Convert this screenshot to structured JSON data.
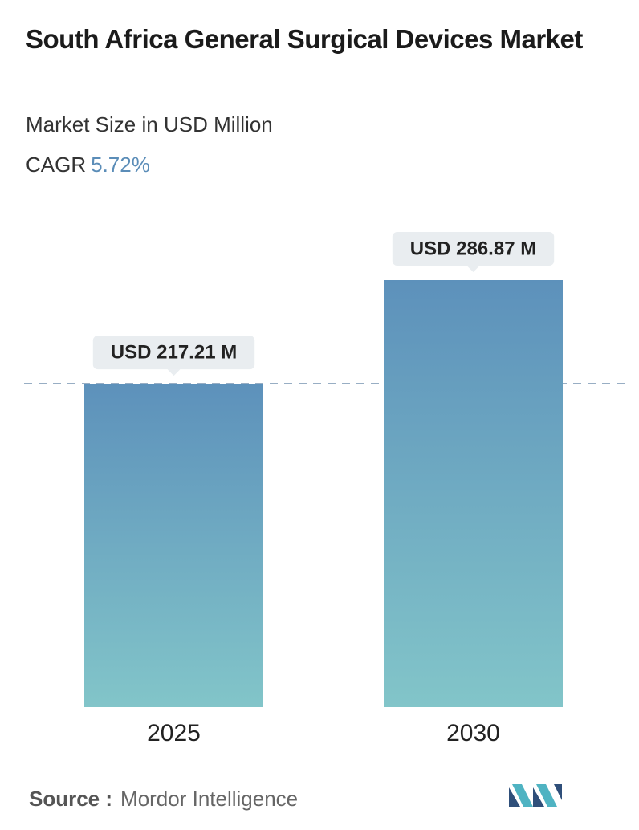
{
  "chart_data": {
    "type": "bar",
    "title": "South Africa General Surgical Devices Market",
    "subtitle": "Market Size in USD Million",
    "cagr_label": "CAGR",
    "cagr": "5.72%",
    "categories": [
      "2025",
      "2030"
    ],
    "values": [
      217.21,
      286.87
    ],
    "value_labels": [
      "USD 217.21 M",
      "USD 286.87 M"
    ],
    "colors": [
      "#5d91bb",
      "#82c5c9"
    ],
    "source_label": "Source :",
    "source": "Mordor Intelligence"
  }
}
